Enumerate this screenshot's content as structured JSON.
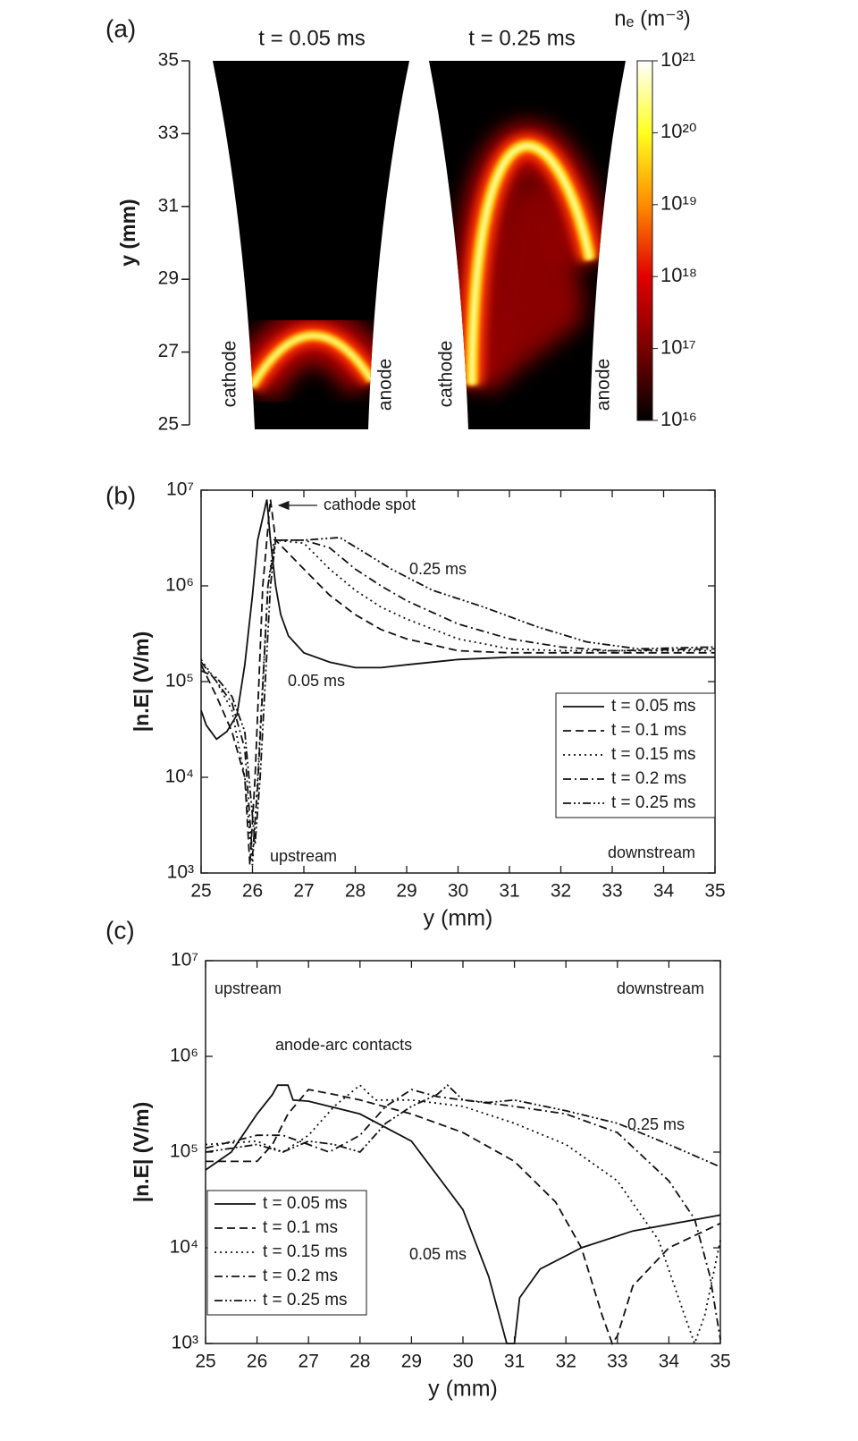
{
  "chart_data": [
    {
      "type": "heatmap",
      "panel": "(a)",
      "titles": [
        "t = 0.05 ms",
        "t = 0.25 ms"
      ],
      "ylabel": "y (mm)",
      "ylim": [
        25,
        35
      ],
      "yticks": [
        25,
        27,
        29,
        31,
        33,
        35
      ],
      "labels": [
        "cathode",
        "anode",
        "cathode",
        "anode"
      ],
      "colorbar": {
        "label": "nₑ (m⁻³)",
        "log": true,
        "lim": [
          1e+16,
          1e+21
        ],
        "colormap": [
          "#000000",
          "#7a0000",
          "#e00000",
          "#ff8c00",
          "#ffff20",
          "#ffffff"
        ],
        "ticks": [
          {
            "value": 1e+16,
            "label": "10¹⁶"
          },
          {
            "value": 1e+17,
            "label": "10¹⁷"
          },
          {
            "value": 1e+18,
            "label": "10¹⁸"
          },
          {
            "value": 1e+19,
            "label": "10¹⁹"
          },
          {
            "value": 1e+20,
            "label": "10²⁰"
          },
          {
            "value": 1e+21,
            "label": "10²¹"
          }
        ]
      }
    },
    {
      "type": "line",
      "panel": "(b)",
      "xlabel": "y  (mm)",
      "ylabel": "|n.E| (V/m)",
      "log_y": true,
      "legend": "lower right",
      "xlim": [
        25,
        35
      ],
      "xticks": [
        25,
        26,
        27,
        28,
        29,
        30,
        31,
        32,
        33,
        34,
        35
      ],
      "ylim": [
        1000,
        10000000
      ],
      "yticks": [
        {
          "value": 1000,
          "label": "10³"
        },
        {
          "value": 10000,
          "label": "10⁴"
        },
        {
          "value": 100000,
          "label": "10⁵"
        },
        {
          "value": 1000000,
          "label": "10⁶"
        },
        {
          "value": 10000000,
          "label": "10⁷"
        }
      ],
      "annotations": [
        "cathode spot",
        "0.25 ms",
        "0.05 ms",
        "upstream",
        "downstream"
      ],
      "series": [
        {
          "name": "t = 0.05 ms",
          "dash": "solid",
          "color": "#111111",
          "x": [
            25,
            25.1,
            25.3,
            25.5,
            25.7,
            25.85,
            26.0,
            26.1,
            26.28,
            26.35,
            26.45,
            26.55,
            26.7,
            27,
            27.5,
            28,
            28.5,
            29,
            30,
            31,
            32,
            33,
            34,
            35
          ],
          "values": [
            50000,
            35000,
            25000,
            30000,
            45000,
            150000,
            800000,
            3000000,
            8000000,
            3000000,
            1000000,
            500000,
            300000,
            200000,
            160000,
            140000,
            140000,
            150000,
            170000,
            180000,
            180000,
            180000,
            180000,
            180000
          ]
        },
        {
          "name": "t = 0.1 ms",
          "dash": "dash",
          "color": "#111111",
          "x": [
            25,
            25.3,
            25.6,
            25.85,
            25.95,
            26.05,
            26.2,
            26.35,
            26.45,
            27,
            27.5,
            28,
            28.5,
            29,
            30,
            31,
            32,
            33,
            35
          ],
          "values": [
            150000,
            70000,
            30000,
            10000,
            1200,
            10000,
            1000000,
            8000000,
            3000000,
            1500000,
            800000,
            500000,
            350000,
            280000,
            210000,
            200000,
            200000,
            200000,
            200000
          ]
        },
        {
          "name": "t = 0.15 ms",
          "dash": "dot",
          "color": "#111111",
          "x": [
            25,
            25.3,
            25.6,
            25.85,
            26.0,
            26.1,
            26.3,
            26.42,
            27,
            27.5,
            28,
            28.5,
            29,
            30,
            31,
            32,
            33,
            35
          ],
          "values": [
            170000,
            100000,
            50000,
            10000,
            1200,
            10000,
            1000000,
            3000000,
            2800000,
            1500000,
            900000,
            600000,
            450000,
            280000,
            220000,
            210000,
            210000,
            210000
          ]
        },
        {
          "name": "t = 0.2 ms",
          "dash": "dashdot",
          "color": "#111111",
          "x": [
            25,
            25.3,
            25.6,
            25.85,
            26.0,
            26.1,
            26.3,
            26.45,
            27,
            27.5,
            28,
            28.5,
            29,
            30,
            31,
            32,
            33,
            35
          ],
          "values": [
            160000,
            100000,
            60000,
            20000,
            1500,
            8000,
            1000000,
            3000000,
            3000000,
            2500000,
            1500000,
            1000000,
            700000,
            400000,
            280000,
            230000,
            210000,
            220000
          ]
        },
        {
          "name": "t = 0.25 ms",
          "dash": "dashdotdot",
          "color": "#111111",
          "x": [
            25,
            25.3,
            25.6,
            25.85,
            26.05,
            26.15,
            26.35,
            26.45,
            27,
            27.7,
            28.2,
            28.7,
            29.5,
            30.5,
            31.5,
            32.5,
            33.5,
            35
          ],
          "values": [
            130000,
            110000,
            70000,
            30000,
            2000,
            10000,
            1000000,
            3000000,
            3000000,
            3200000,
            2200000,
            1500000,
            900000,
            600000,
            380000,
            260000,
            220000,
            230000
          ]
        }
      ]
    },
    {
      "type": "line",
      "panel": "(c)",
      "xlabel": "y  (mm)",
      "ylabel": "|n.E| (V/m)",
      "log_y": true,
      "legend": "lower left",
      "xlim": [
        25,
        35
      ],
      "xticks": [
        25,
        26,
        27,
        28,
        29,
        30,
        31,
        32,
        33,
        34,
        35
      ],
      "ylim": [
        1000,
        10000000
      ],
      "yticks": [
        {
          "value": 1000,
          "label": "10³"
        },
        {
          "value": 10000,
          "label": "10⁴"
        },
        {
          "value": 100000,
          "label": "10⁵"
        },
        {
          "value": 1000000,
          "label": "10⁶"
        },
        {
          "value": 10000000,
          "label": "10⁷"
        }
      ],
      "annotations": [
        "upstream",
        "downstream",
        "anode-arc contacts",
        "0.25 ms",
        "0.05 ms"
      ],
      "series": [
        {
          "name": "t = 0.05 ms",
          "dash": "solid",
          "color": "#111111",
          "x": [
            25,
            25.5,
            26,
            26.3,
            26.4,
            26.6,
            26.7,
            27,
            28,
            29,
            30,
            30.5,
            30.85,
            31.0,
            31.1,
            31.5,
            32.3,
            33.3,
            35
          ],
          "values": [
            65000,
            100000,
            250000,
            400000,
            500000,
            500000,
            350000,
            340000,
            250000,
            130000,
            25000,
            5000,
            1000,
            1000,
            3000,
            6000,
            10000,
            15000,
            22000
          ]
        },
        {
          "name": "t = 0.1 ms",
          "dash": "dash",
          "color": "#111111",
          "x": [
            25,
            25.5,
            26,
            26.3,
            26.6,
            27,
            27.5,
            28,
            29,
            30,
            31,
            31.8,
            32.3,
            32.7,
            32.9,
            33.0,
            33.3,
            34,
            35
          ],
          "values": [
            80000,
            80000,
            80000,
            120000,
            250000,
            450000,
            400000,
            350000,
            250000,
            160000,
            80000,
            30000,
            10000,
            2000,
            1000,
            1200,
            4000,
            10000,
            18000
          ]
        },
        {
          "name": "t = 0.15 ms",
          "dash": "dot",
          "color": "#111111",
          "x": [
            25,
            26,
            26.5,
            27,
            27.5,
            28,
            28.3,
            29,
            30,
            31,
            32,
            33,
            33.8,
            34.3,
            34.5,
            34.7,
            35
          ],
          "values": [
            120000,
            130000,
            100000,
            150000,
            300000,
            500000,
            350000,
            350000,
            300000,
            200000,
            120000,
            50000,
            12000,
            2000,
            1000,
            2000,
            12000
          ]
        },
        {
          "name": "t = 0.2 ms",
          "dash": "dashdot",
          "color": "#111111",
          "x": [
            25,
            26,
            26.5,
            27,
            27.4,
            28,
            28.5,
            29,
            29.5,
            30,
            31,
            32,
            33,
            34,
            34.5,
            34.8,
            35
          ],
          "values": [
            110000,
            150000,
            150000,
            120000,
            100000,
            150000,
            300000,
            450000,
            380000,
            350000,
            300000,
            250000,
            160000,
            50000,
            20000,
            5000,
            1100
          ]
        },
        {
          "name": "t = 0.25 ms",
          "dash": "dashdotdot",
          "color": "#111111",
          "x": [
            25,
            26,
            26.5,
            27,
            27.5,
            28,
            28.5,
            29,
            29.5,
            29.7,
            30,
            30.5,
            31,
            32,
            33,
            34,
            35
          ],
          "values": [
            100000,
            120000,
            100000,
            130000,
            120000,
            100000,
            200000,
            300000,
            400000,
            500000,
            350000,
            330000,
            350000,
            270000,
            200000,
            120000,
            70000
          ]
        }
      ]
    }
  ]
}
